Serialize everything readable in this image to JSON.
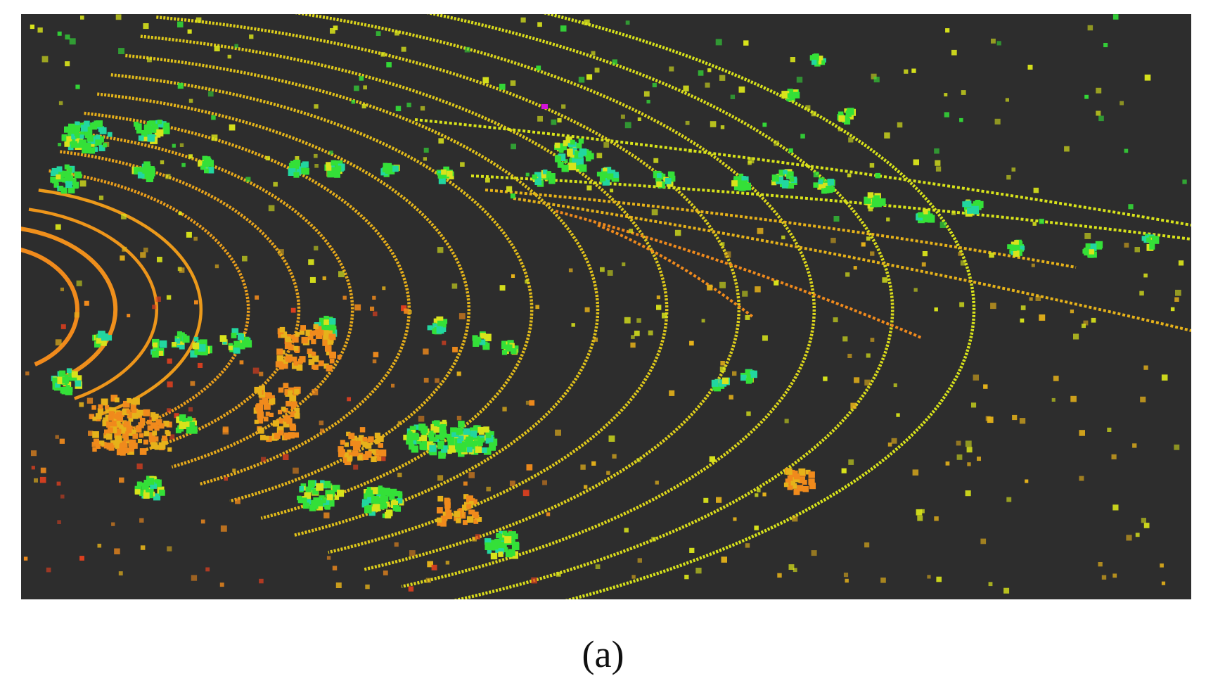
{
  "figure": {
    "caption": "(a)",
    "background_color": "#2d2d2d",
    "palette": {
      "near": "#e0401f",
      "mid_near": "#f08a1c",
      "mid": "#e6b21a",
      "far": "#d8e31b",
      "vegetation": "#34e038",
      "vegetation_light": "#22d6a0",
      "highlight": "#d312d8"
    }
  }
}
